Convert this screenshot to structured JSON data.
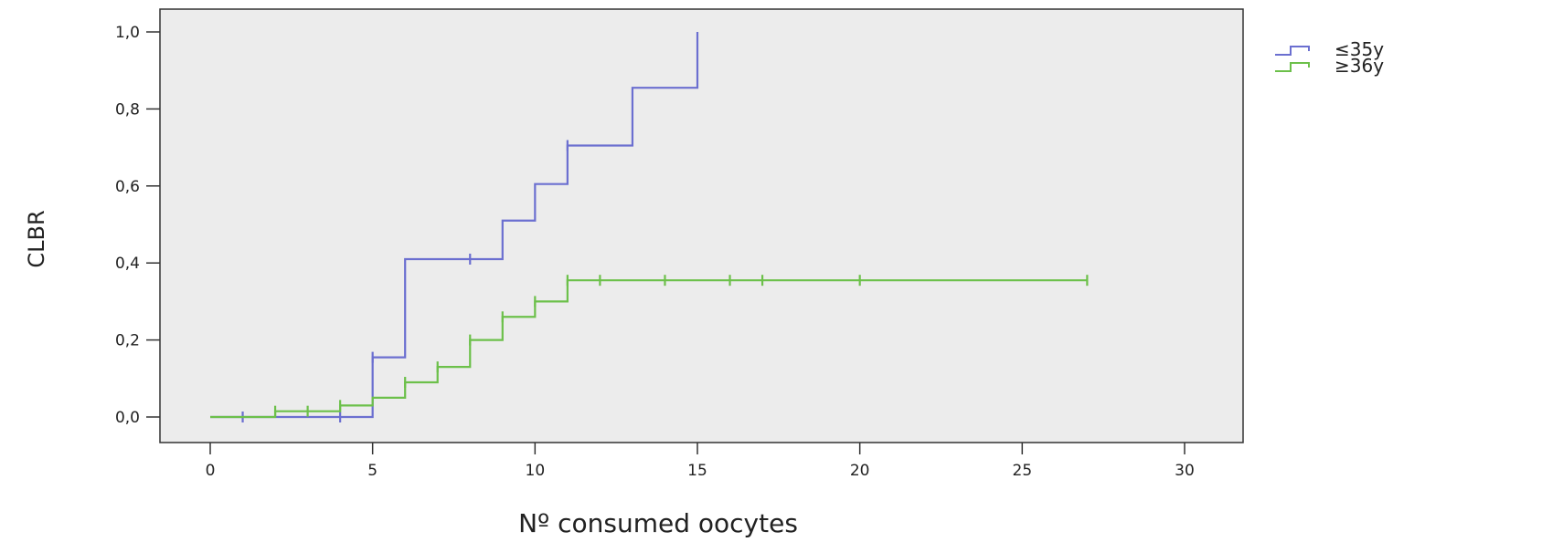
{
  "chart_data": {
    "type": "line",
    "xlabel": "Nº consumed oocytes",
    "ylabel": "CLBR",
    "xlim": [
      0,
      30
    ],
    "ylim": [
      0,
      1
    ],
    "xticks": [
      0,
      5,
      10,
      15,
      20,
      25,
      30
    ],
    "xtick_labels": [
      "0",
      "5",
      "10",
      "15",
      "20",
      "25",
      "30"
    ],
    "yticks": [
      0,
      0.2,
      0.4,
      0.6,
      0.8,
      1.0
    ],
    "ytick_labels": [
      "0,0",
      "0,2",
      "0,4",
      "0,6",
      "0,8",
      "1,0"
    ],
    "grid": false,
    "legend_position": "right",
    "background": "#ececec",
    "series": [
      {
        "name": "≤35y",
        "color": "#6b6fd0",
        "steps": [
          [
            0,
            0
          ],
          [
            5,
            0.155
          ],
          [
            6,
            0.41
          ],
          [
            9,
            0.51
          ],
          [
            10,
            0.605
          ],
          [
            11,
            0.705
          ],
          [
            13,
            0.855
          ],
          [
            15,
            1.0
          ]
        ],
        "x_end": 15,
        "censored": [
          [
            1,
            0
          ],
          [
            4,
            0
          ],
          [
            5,
            0.155
          ],
          [
            8,
            0.41
          ],
          [
            11,
            0.705
          ]
        ]
      },
      {
        "name": "≥36y",
        "color": "#6cc04a",
        "steps": [
          [
            0,
            0
          ],
          [
            2,
            0.015
          ],
          [
            4,
            0.03
          ],
          [
            5,
            0.05
          ],
          [
            6,
            0.09
          ],
          [
            7,
            0.13
          ],
          [
            8,
            0.2
          ],
          [
            9,
            0.26
          ],
          [
            10,
            0.3
          ],
          [
            11,
            0.355
          ]
        ],
        "x_end": 27,
        "censored": [
          [
            2,
            0.015
          ],
          [
            3,
            0.015
          ],
          [
            4,
            0.03
          ],
          [
            6,
            0.09
          ],
          [
            7,
            0.13
          ],
          [
            8,
            0.2
          ],
          [
            9,
            0.26
          ],
          [
            10,
            0.3
          ],
          [
            11,
            0.355
          ],
          [
            12,
            0.355
          ],
          [
            14,
            0.355
          ],
          [
            16,
            0.355
          ],
          [
            17,
            0.355
          ],
          [
            20,
            0.355
          ],
          [
            27,
            0.355
          ]
        ]
      }
    ]
  }
}
